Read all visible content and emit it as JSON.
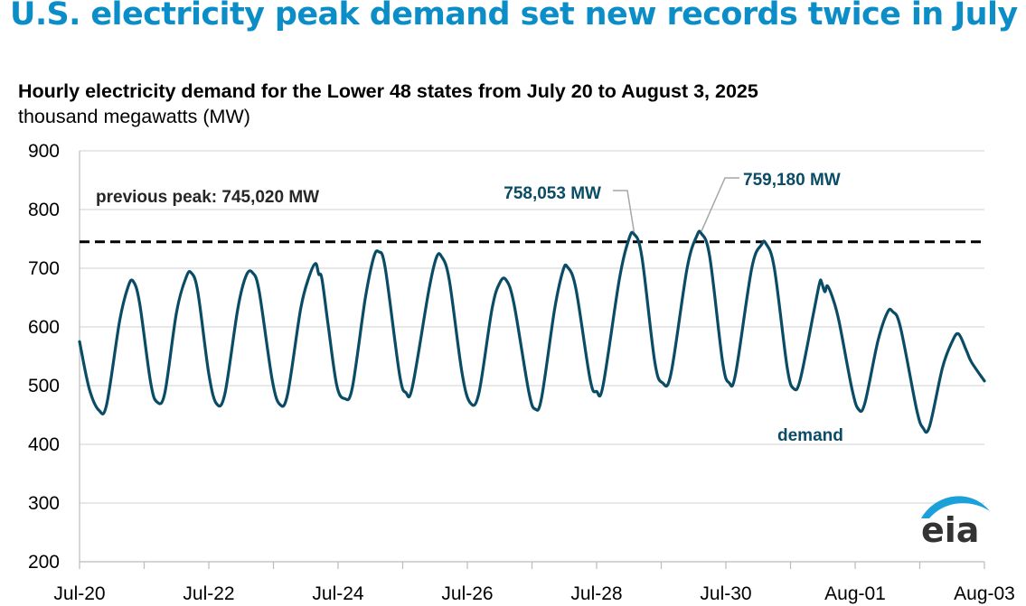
{
  "headline": "U.S. electricity peak demand set new records twice in July",
  "colors": {
    "headline": "#0b8ec7",
    "series": "#0a4c65",
    "grid": "#d9d9d9",
    "logo_arc": "#1aa1d9"
  },
  "logo": {
    "text": "eia",
    "icon": "eia-logo-arc-icon"
  },
  "chart_data": {
    "type": "line",
    "title": "Hourly electricity demand for the Lower 48 states from July 20 to August 3, 2025",
    "ylabel": "thousand megawatts (MW)",
    "xlabel": "",
    "ylim": [
      200,
      900
    ],
    "yticks": [
      "200",
      "300",
      "400",
      "500",
      "600",
      "700",
      "800",
      "900"
    ],
    "x_range": [
      0,
      14
    ],
    "xtick_labels": [
      {
        "label": "Jul-20",
        "day": 0
      },
      {
        "label": "Jul-22",
        "day": 2
      },
      {
        "label": "Jul-24",
        "day": 4
      },
      {
        "label": "Jul-26",
        "day": 6
      },
      {
        "label": "Jul-28",
        "day": 8
      },
      {
        "label": "Jul-30",
        "day": 10
      },
      {
        "label": "Aug-01",
        "day": 12
      },
      {
        "label": "Aug-03",
        "day": 14
      }
    ],
    "grid": true,
    "reference_line": {
      "label": "previous peak: 745,020 MW",
      "value": 745.02,
      "style": "dashed"
    },
    "series": [
      {
        "name": "demand",
        "label_text": "demand",
        "points": [
          [
            0.0,
            575
          ],
          [
            0.15,
            495
          ],
          [
            0.3,
            458
          ],
          [
            0.42,
            468
          ],
          [
            0.62,
            610
          ],
          [
            0.75,
            668
          ],
          [
            0.83,
            678
          ],
          [
            0.93,
            640
          ],
          [
            1.1,
            505
          ],
          [
            1.2,
            472
          ],
          [
            1.32,
            488
          ],
          [
            1.5,
            625
          ],
          [
            1.65,
            685
          ],
          [
            1.73,
            692
          ],
          [
            1.83,
            660
          ],
          [
            2.0,
            520
          ],
          [
            2.12,
            469
          ],
          [
            2.25,
            487
          ],
          [
            2.45,
            632
          ],
          [
            2.58,
            688
          ],
          [
            2.68,
            692
          ],
          [
            2.78,
            660
          ],
          [
            2.98,
            510
          ],
          [
            3.1,
            468
          ],
          [
            3.22,
            486
          ],
          [
            3.42,
            630
          ],
          [
            3.55,
            685
          ],
          [
            3.65,
            708
          ],
          [
            3.7,
            690
          ],
          [
            3.75,
            682
          ],
          [
            3.85,
            600
          ],
          [
            3.98,
            500
          ],
          [
            4.1,
            478
          ],
          [
            4.22,
            496
          ],
          [
            4.42,
            648
          ],
          [
            4.55,
            718
          ],
          [
            4.63,
            728
          ],
          [
            4.73,
            700
          ],
          [
            4.95,
            520
          ],
          [
            5.05,
            488
          ],
          [
            5.15,
            498
          ],
          [
            5.4,
            660
          ],
          [
            5.52,
            718
          ],
          [
            5.6,
            720
          ],
          [
            5.72,
            680
          ],
          [
            5.92,
            520
          ],
          [
            6.05,
            470
          ],
          [
            6.18,
            488
          ],
          [
            6.38,
            630
          ],
          [
            6.5,
            675
          ],
          [
            6.6,
            680
          ],
          [
            6.72,
            640
          ],
          [
            6.95,
            490
          ],
          [
            7.05,
            460
          ],
          [
            7.15,
            480
          ],
          [
            7.35,
            630
          ],
          [
            7.48,
            696
          ],
          [
            7.55,
            702
          ],
          [
            7.68,
            665
          ],
          [
            7.9,
            510
          ],
          [
            8.0,
            490
          ],
          [
            8.1,
            500
          ],
          [
            8.35,
            680
          ],
          [
            8.5,
            750
          ],
          [
            8.58,
            758.05
          ],
          [
            8.7,
            720
          ],
          [
            8.9,
            540
          ],
          [
            9.02,
            505
          ],
          [
            9.15,
            520
          ],
          [
            9.4,
            700
          ],
          [
            9.55,
            755
          ],
          [
            9.62,
            759.18
          ],
          [
            9.75,
            720
          ],
          [
            9.95,
            540
          ],
          [
            10.05,
            505
          ],
          [
            10.15,
            520
          ],
          [
            10.4,
            700
          ],
          [
            10.55,
            740
          ],
          [
            10.62,
            742
          ],
          [
            10.75,
            700
          ],
          [
            10.95,
            530
          ],
          [
            11.05,
            495
          ],
          [
            11.15,
            510
          ],
          [
            11.35,
            620
          ],
          [
            11.45,
            675
          ],
          [
            11.48,
            676
          ],
          [
            11.53,
            660
          ],
          [
            11.57,
            670
          ],
          [
            11.65,
            650
          ],
          [
            11.75,
            610
          ],
          [
            11.95,
            495
          ],
          [
            12.05,
            460
          ],
          [
            12.15,
            470
          ],
          [
            12.35,
            575
          ],
          [
            12.5,
            625
          ],
          [
            12.58,
            626
          ],
          [
            12.7,
            600
          ],
          [
            12.95,
            460
          ],
          [
            13.05,
            428
          ],
          [
            13.15,
            430
          ],
          [
            13.35,
            530
          ],
          [
            13.5,
            575
          ],
          [
            13.6,
            588
          ],
          [
            13.72,
            560
          ],
          [
            13.8,
            540
          ],
          [
            14.0,
            508
          ]
        ]
      }
    ],
    "annotations": [
      {
        "text": "758,053 MW",
        "value": 758.053,
        "day": 8.58
      },
      {
        "text": "759,180 MW",
        "value": 759.18,
        "day": 9.62
      }
    ]
  }
}
